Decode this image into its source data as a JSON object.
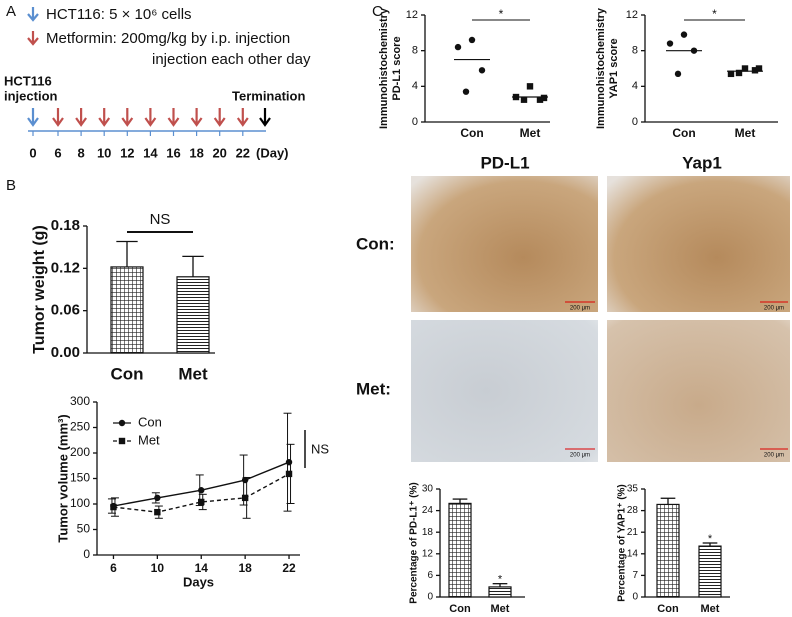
{
  "panel_labels": [
    "A",
    "B",
    "C"
  ],
  "timeline": {
    "legend": [
      "HCT116: 5 × 10⁶ cells",
      "Metformin: 200mg/kg by i.p.  injection",
      "injection each other day"
    ],
    "start_label": [
      "HCT116",
      "injection"
    ],
    "end_label": "Termination",
    "days": [
      0,
      6,
      8,
      10,
      12,
      14,
      16,
      18,
      20,
      22
    ],
    "unit": "(Day)"
  },
  "ihc": {
    "columns": [
      "PD-L1",
      "Yap1"
    ],
    "rows": [
      "Con:",
      "Met:"
    ],
    "scale_bar": "200 μm"
  },
  "chart_data": [
    {
      "type": "dot",
      "ylabel": [
        "Immunohistochemistry",
        "PD-L1 score"
      ],
      "categories": [
        "Con",
        "Met"
      ],
      "groups": [
        {
          "marker": "circle",
          "values": [
            9.2,
            8.4,
            5.8,
            3.4
          ],
          "mean": 7.0
        },
        {
          "marker": "square",
          "values": [
            4.0,
            2.8,
            2.5,
            2.5,
            2.7
          ],
          "mean": 2.8
        }
      ],
      "ylim": [
        0,
        12
      ],
      "yticks": [
        0,
        4,
        8,
        12
      ],
      "annotation": "*"
    },
    {
      "type": "dot",
      "ylabel": [
        "Immunohistochemistry",
        "YAP1 score"
      ],
      "categories": [
        "Con",
        "Met"
      ],
      "groups": [
        {
          "marker": "circle",
          "values": [
            9.8,
            8.8,
            8.0,
            5.4
          ],
          "mean": 8.0
        },
        {
          "marker": "square",
          "values": [
            6.0,
            5.4,
            5.8,
            5.5,
            6.0
          ],
          "mean": 5.7
        }
      ],
      "ylim": [
        0,
        12
      ],
      "yticks": [
        0,
        4,
        8,
        12
      ],
      "annotation": "*"
    },
    {
      "type": "bar",
      "ylabel": "Tumor weight (g)",
      "categories": [
        "Con",
        "Met"
      ],
      "values": [
        0.122,
        0.108
      ],
      "errors": [
        0.036,
        0.029
      ],
      "ylim": [
        0,
        0.18
      ],
      "yticks": [
        {
          "value": 0,
          "label": "0.00"
        },
        0.06,
        0.12,
        0.18
      ],
      "annotation": "NS"
    },
    {
      "type": "line",
      "xlabel": "Days",
      "ylabel": "Tumor volume (mm³)",
      "x": [
        6,
        10,
        14,
        18,
        22
      ],
      "series": [
        {
          "name": "Con",
          "marker": "circle",
          "line_style": "solid",
          "values": [
            96,
            112,
            127,
            147,
            182
          ],
          "errors": [
            14,
            10,
            30,
            49,
            96
          ]
        },
        {
          "name": "Met",
          "marker": "square",
          "line_style": "dashed",
          "values": [
            94,
            84,
            104,
            112,
            159
          ],
          "errors": [
            18,
            12,
            15,
            40,
            58
          ]
        }
      ],
      "xlim": [
        4.5,
        23
      ],
      "xticks": [
        6,
        10,
        14,
        18,
        22
      ],
      "ylim": [
        0,
        300
      ],
      "yticks": [
        0,
        50,
        100,
        150,
        200,
        250,
        300
      ],
      "annotation": "NS"
    },
    {
      "type": "bar",
      "ylabel": "Percentage of PD-L1⁺ (%)",
      "categories": [
        "Con",
        "Met"
      ],
      "values": [
        26,
        2.8
      ],
      "errors": [
        1.2,
        0.9
      ],
      "ylim": [
        0,
        30
      ],
      "yticks": [
        0,
        6,
        12,
        18,
        24,
        30
      ],
      "annotation": "*"
    },
    {
      "type": "bar",
      "ylabel": "Percentage of YAP1⁺ (%)",
      "categories": [
        "Con",
        "Met"
      ],
      "values": [
        30,
        16.5
      ],
      "errors": [
        2,
        1
      ],
      "ylim": [
        0,
        35
      ],
      "yticks": [
        0,
        7,
        14,
        21,
        28,
        35
      ],
      "annotation": "*"
    }
  ]
}
